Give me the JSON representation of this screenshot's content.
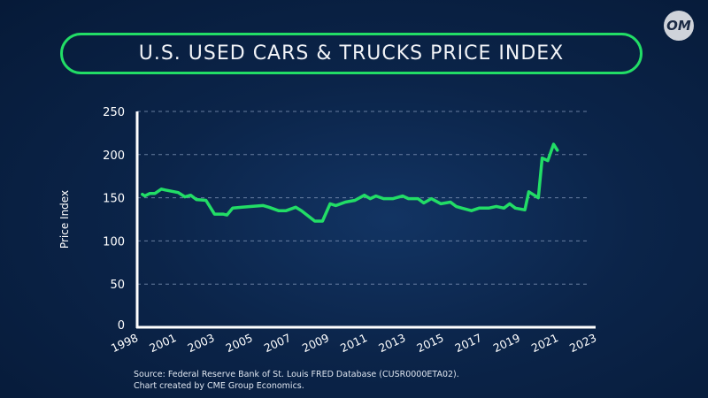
{
  "header": {
    "title": "U.S. USED CARS & TRUCKS PRICE INDEX",
    "logo_text": "OM"
  },
  "footer": {
    "source": "Source: Federal Reserve Bank of St. Louis FRED Database (CUSR0000ETA02).",
    "credit": "Chart created by CME Group Economics."
  },
  "colors": {
    "line": "#22dd66",
    "axis": "#ffffff",
    "grid": "#8fa3c4"
  },
  "chart_data": {
    "type": "line",
    "title": "U.S. USED CARS & TRUCKS PRICE INDEX",
    "xlabel": "",
    "ylabel": "Price Index",
    "ylim": [
      0,
      250
    ],
    "yticks": [
      0,
      50,
      100,
      150,
      200,
      250
    ],
    "xtick_labels": [
      "1998",
      "2001",
      "2003",
      "2005",
      "2007",
      "2009",
      "2011",
      "2013",
      "2015",
      "2017",
      "2019",
      "2021",
      "2023"
    ],
    "grid": true,
    "series": [
      {
        "name": "Price Index",
        "x": [
          1998.4,
          1998.6,
          1999.0,
          1999.4,
          1999.9,
          2000.2,
          2001.15,
          2001.5,
          2001.8,
          2002.1,
          2002.6,
          2003.05,
          2003.5,
          2003.7,
          2004.0,
          2004.5,
          2005.0,
          2005.6,
          2005.9,
          2006.4,
          2006.8,
          2007.3,
          2007.6,
          2008.3,
          2008.7,
          2009.1,
          2009.4,
          2009.9,
          2010.4,
          2010.9,
          2011.2,
          2011.5,
          2011.9,
          2012.4,
          2012.9,
          2013.2,
          2013.7,
          2014.0,
          2014.4,
          2014.9,
          2015.4,
          2015.7,
          2016.0,
          2016.5,
          2016.9,
          2017.4,
          2017.8,
          2018.2,
          2018.5,
          2018.8,
          2019.3,
          2019.5,
          2020.0,
          2020.2,
          2020.5,
          2020.8,
          2021.0
        ],
        "y": [
          154,
          152,
          155,
          155,
          160,
          159,
          156,
          151,
          153,
          148,
          147,
          131,
          131,
          130,
          138,
          139,
          140,
          141,
          139,
          135,
          135,
          139,
          135,
          123,
          123,
          143,
          141,
          145,
          147,
          153,
          149,
          152,
          149,
          149,
          152,
          149,
          149,
          144,
          149,
          143,
          145,
          140,
          138,
          135,
          138,
          138,
          140,
          138,
          143,
          138,
          136,
          157,
          150,
          196,
          193,
          212,
          205
        ]
      }
    ]
  }
}
